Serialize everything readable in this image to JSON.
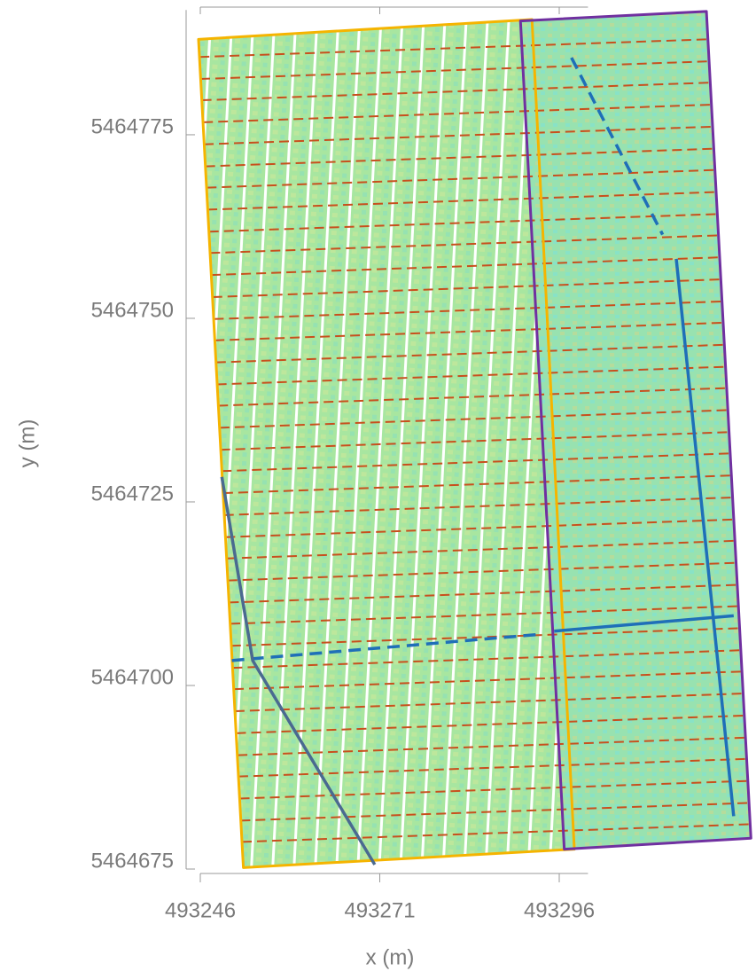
{
  "chart_data": {
    "type": "map",
    "x_label": "x (m)",
    "y_label": "y (m)",
    "xlim": [
      493246,
      493300
    ],
    "ylim": [
      5464675,
      5464792
    ],
    "xticks": [
      493246,
      493271,
      493296
    ],
    "yticks": [
      5464675,
      5464700,
      5464725,
      5464750,
      5464775
    ],
    "series": [
      {
        "color": "#f5b400",
        "closed": true,
        "dashed": false,
        "width": 3,
        "x": [
          493245.75,
          493292.2,
          493298.1,
          493252.0
        ],
        "y": [
          5464788.0,
          5464790.7,
          5464677.7,
          5464675.2
        ]
      },
      {
        "color": "#7030a0",
        "closed": true,
        "dashed": false,
        "width": 3,
        "x": [
          493290.6,
          493316.5,
          493322.7,
          493296.7
        ],
        "y": [
          5464790.5,
          5464791.8,
          5464679.2,
          5464677.7
        ]
      },
      {
        "color": "#1f6fb8",
        "closed": false,
        "dashed": false,
        "width": 3.5,
        "x": [
          493312.3,
          493320.3
        ],
        "y": [
          5464758.1,
          5464682.2
        ]
      },
      {
        "color": "#1f6fb8",
        "closed": false,
        "dashed": false,
        "width": 3.5,
        "x": [
          493295.3,
          493320.3
        ],
        "y": [
          5464707.4,
          5464709.5
        ]
      },
      {
        "color": "#1f6fb8",
        "closed": false,
        "dashed": true,
        "width": 3.5,
        "x": [
          493297.7,
          493310.4
        ],
        "y": [
          5464785.5,
          5464761.4
        ]
      },
      {
        "color": "#1f6fb8",
        "closed": false,
        "dashed": true,
        "width": 3.5,
        "x": [
          493250.4,
          493293.7
        ],
        "y": [
          5464703.4,
          5464707.0
        ]
      },
      {
        "color": "#4a6a90",
        "closed": false,
        "dashed": false,
        "width": 3.5,
        "x": [
          493249.0,
          493253.3,
          493270.3
        ],
        "y": [
          5464728.4,
          5464703.4,
          5464675.6
        ]
      }
    ],
    "transects": {
      "color": "#c8501e",
      "x_start": [
        493245.9,
        493246.0,
        493246.2,
        493246.4,
        493246.5,
        493246.7,
        493246.9,
        493247.0,
        493247.2,
        493247.4,
        493247.5,
        493247.7,
        493247.9,
        493248.0,
        493248.2,
        493248.3,
        493248.5,
        493248.7,
        493248.8,
        493249.0,
        493249.2,
        493249.3,
        493249.5,
        493249.7,
        493249.8,
        493250.0,
        493250.2,
        493250.3,
        493250.5,
        493250.7,
        493250.8,
        493251.0,
        493251.2,
        493251.3,
        493251.5,
        493251.6,
        493251.8
      ],
      "y_start": [
        5464785.6,
        5464782.6,
        5464779.7,
        5464776.7,
        5464773.7,
        5464770.7,
        5464767.8,
        5464764.8,
        5464761.8,
        5464758.9,
        5464755.9,
        5464752.9,
        5464749.9,
        5464747.0,
        5464744.0,
        5464741.0,
        5464738.1,
        5464735.1,
        5464732.1,
        5464729.2,
        5464726.2,
        5464723.2,
        5464720.2,
        5464717.3,
        5464714.3,
        5464711.3,
        5464708.4,
        5464705.4,
        5464702.4,
        5464699.5,
        5464696.5,
        5464693.5,
        5464690.5,
        5464687.6,
        5464684.6,
        5464681.6,
        5464678.7
      ],
      "x_end": [
        493316.7,
        493316.9,
        493317.0,
        493317.2,
        493317.4,
        493317.5,
        493317.7,
        493317.9,
        493318.0,
        493318.2,
        493318.3,
        493318.5,
        493318.7,
        493318.8,
        493319.0,
        493319.2,
        493319.3,
        493319.5,
        493319.7,
        493319.8,
        493320.0,
        493320.1,
        493320.3,
        493320.5,
        493320.6,
        493320.8,
        493321.0,
        493321.1,
        493321.3,
        493321.5,
        493321.6,
        493321.8,
        493322.0,
        493322.1,
        493322.3,
        493322.4,
        493322.6
      ],
      "y_end": [
        5464788.0,
        5464785.0,
        5464782.1,
        5464779.1,
        5464776.1,
        5464773.1,
        5464770.2,
        5464767.2,
        5464764.2,
        5464761.3,
        5464758.3,
        5464755.3,
        5464752.3,
        5464749.4,
        5464746.4,
        5464743.4,
        5464740.5,
        5464737.5,
        5464734.5,
        5464731.6,
        5464728.6,
        5464725.6,
        5464722.6,
        5464719.7,
        5464716.7,
        5464713.7,
        5464710.8,
        5464707.8,
        5464704.8,
        5464701.9,
        5464698.9,
        5464695.9,
        5464692.9,
        5464690.0,
        5464687.0,
        5464684.0,
        5464681.1
      ]
    }
  }
}
